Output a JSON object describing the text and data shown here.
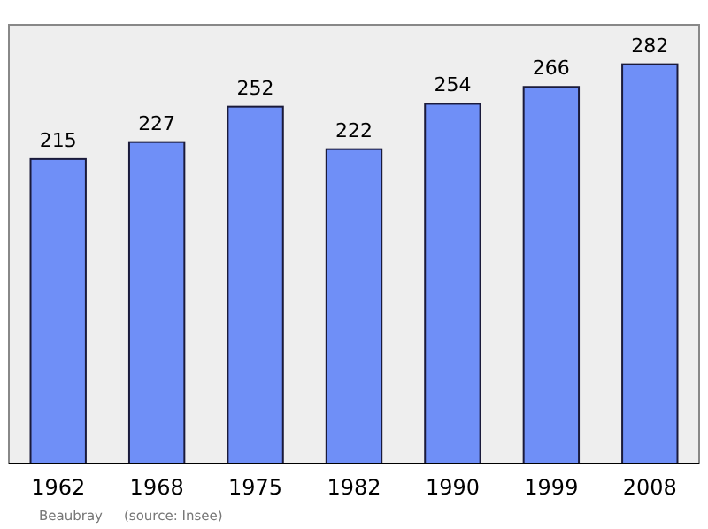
{
  "chart_data": {
    "type": "bar",
    "categories": [
      "1962",
      "1968",
      "1975",
      "1982",
      "1990",
      "1999",
      "2008"
    ],
    "values": [
      215,
      227,
      252,
      222,
      254,
      266,
      282
    ],
    "color": "#6f8ff7",
    "data_labels": true,
    "annotations": [
      "Beaubray",
      "(source: Insee)"
    ]
  }
}
